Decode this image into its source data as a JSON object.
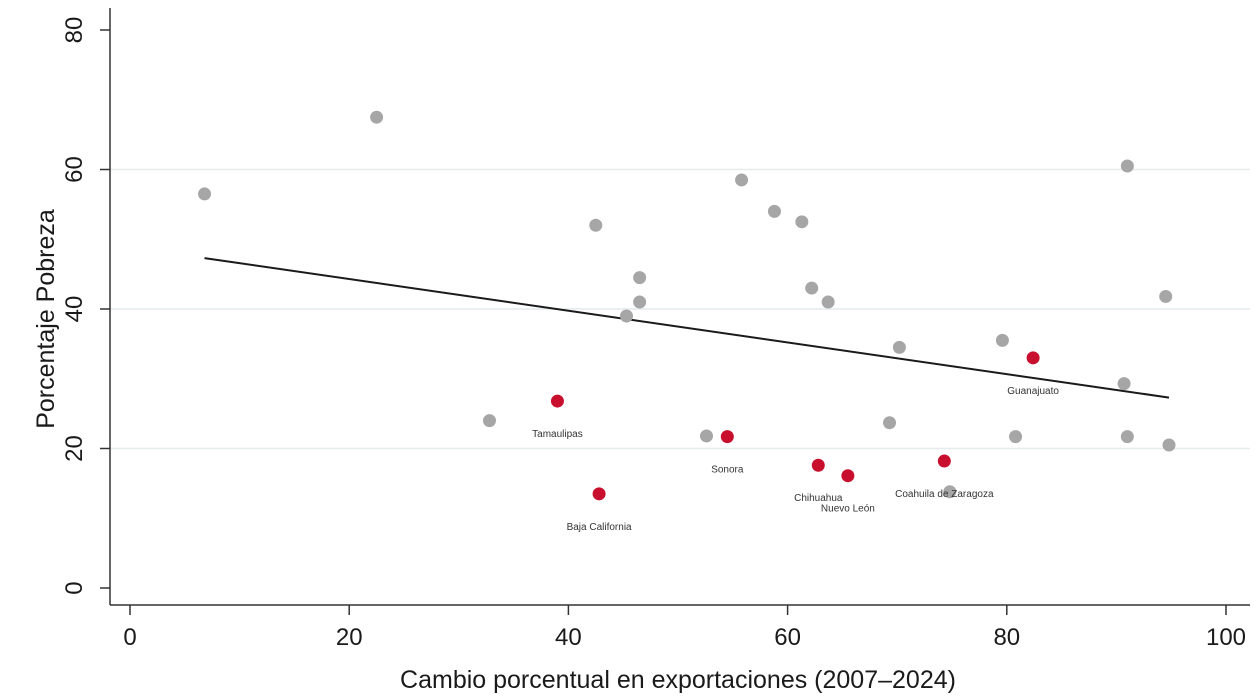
{
  "chart_data": {
    "type": "scatter",
    "xlabel": "Cambio porcentual en exportaciones (2007–2024)",
    "ylabel": "Porcentaje Pobreza",
    "xlim": [
      0,
      100
    ],
    "ylim": [
      0,
      80
    ],
    "xticks": [
      0,
      20,
      40,
      60,
      80,
      100
    ],
    "yticks": [
      0,
      20,
      40,
      60,
      80
    ],
    "grid": "horizontal",
    "colors": {
      "other": "#a6a6a6",
      "highlight": "#c8102e",
      "fit": "#1a1a1a"
    },
    "points_other": [
      {
        "x": 6.8,
        "y": 56.5
      },
      {
        "x": 22.5,
        "y": 67.5
      },
      {
        "x": 32.8,
        "y": 24.0
      },
      {
        "x": 42.5,
        "y": 52.0
      },
      {
        "x": 45.3,
        "y": 39.0
      },
      {
        "x": 46.5,
        "y": 44.5
      },
      {
        "x": 46.5,
        "y": 41.0
      },
      {
        "x": 52.6,
        "y": 21.8
      },
      {
        "x": 55.8,
        "y": 58.5
      },
      {
        "x": 58.8,
        "y": 54.0
      },
      {
        "x": 61.3,
        "y": 52.5
      },
      {
        "x": 62.2,
        "y": 43.0
      },
      {
        "x": 63.7,
        "y": 41.0
      },
      {
        "x": 69.3,
        "y": 23.7
      },
      {
        "x": 70.2,
        "y": 34.5
      },
      {
        "x": 74.8,
        "y": 13.8
      },
      {
        "x": 79.6,
        "y": 35.5
      },
      {
        "x": 80.8,
        "y": 21.7
      },
      {
        "x": 90.7,
        "y": 29.3
      },
      {
        "x": 91.0,
        "y": 60.5
      },
      {
        "x": 91.0,
        "y": 21.7
      },
      {
        "x": 94.5,
        "y": 41.8
      },
      {
        "x": 94.8,
        "y": 20.5
      }
    ],
    "points_highlight": [
      {
        "x": 39.0,
        "y": 26.8,
        "label": "Tamaulipas"
      },
      {
        "x": 42.8,
        "y": 13.5,
        "label": "Baja California"
      },
      {
        "x": 54.5,
        "y": 21.7,
        "label": "Sonora"
      },
      {
        "x": 62.8,
        "y": 17.6,
        "label": "Chihuahua"
      },
      {
        "x": 65.5,
        "y": 16.1,
        "label": "Nuevo León"
      },
      {
        "x": 74.3,
        "y": 18.2,
        "label": "Coahuila de Zaragoza"
      },
      {
        "x": 82.4,
        "y": 33.0,
        "label": "Guanajuato"
      }
    ],
    "fit_line": {
      "x": [
        6.8,
        94.8
      ],
      "y": [
        47.3,
        27.3
      ]
    }
  }
}
